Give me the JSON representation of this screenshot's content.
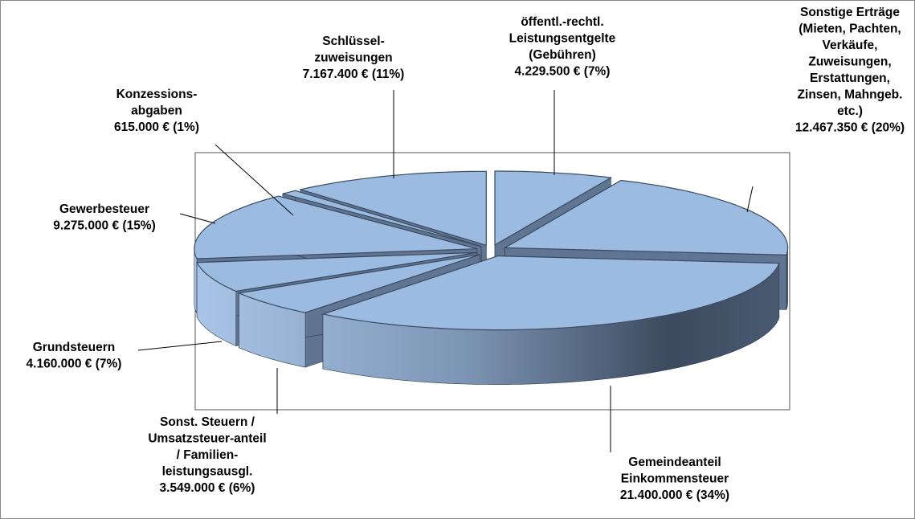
{
  "chart_data": {
    "type": "pie3d",
    "categories": [
      [
        "öffentl.-rechtl.",
        "Leistungsentgelte",
        "(Gebühren)"
      ],
      [
        "Sonstige Erträge",
        "(Mieten, Pachten,",
        "Verkäufe,",
        "Zuweisungen,",
        "Erstattungen,",
        "Zinsen, Mahngeb.",
        "etc.)"
      ],
      [
        "Gemeindeanteil",
        "Einkommensteuer"
      ],
      [
        "Sonst. Steuern /",
        "Umsatzsteuer-anteil",
        "/ Familien-",
        "leistungsausgl."
      ],
      [
        "Grundsteuern"
      ],
      [
        "Gewerbesteuer"
      ],
      [
        "Konzessions-",
        "abgaben"
      ],
      [
        "Schlüssel-",
        "zuweisungen"
      ]
    ],
    "values": [
      4229500,
      12467350,
      21400000,
      3549000,
      4160000,
      9275000,
      615000,
      7167400
    ],
    "value_labels": [
      "4.229.500 € (7%)",
      "12.467.350 € (20%)",
      "21.400.000 € (34%)",
      "3.549.000 € (6%)",
      "4.160.000 € (7%)",
      "9.275.000 € (15%)",
      "615.000 € (1%)",
      "7.167.400 € (11%)"
    ],
    "color": "#9cbbe0"
  }
}
